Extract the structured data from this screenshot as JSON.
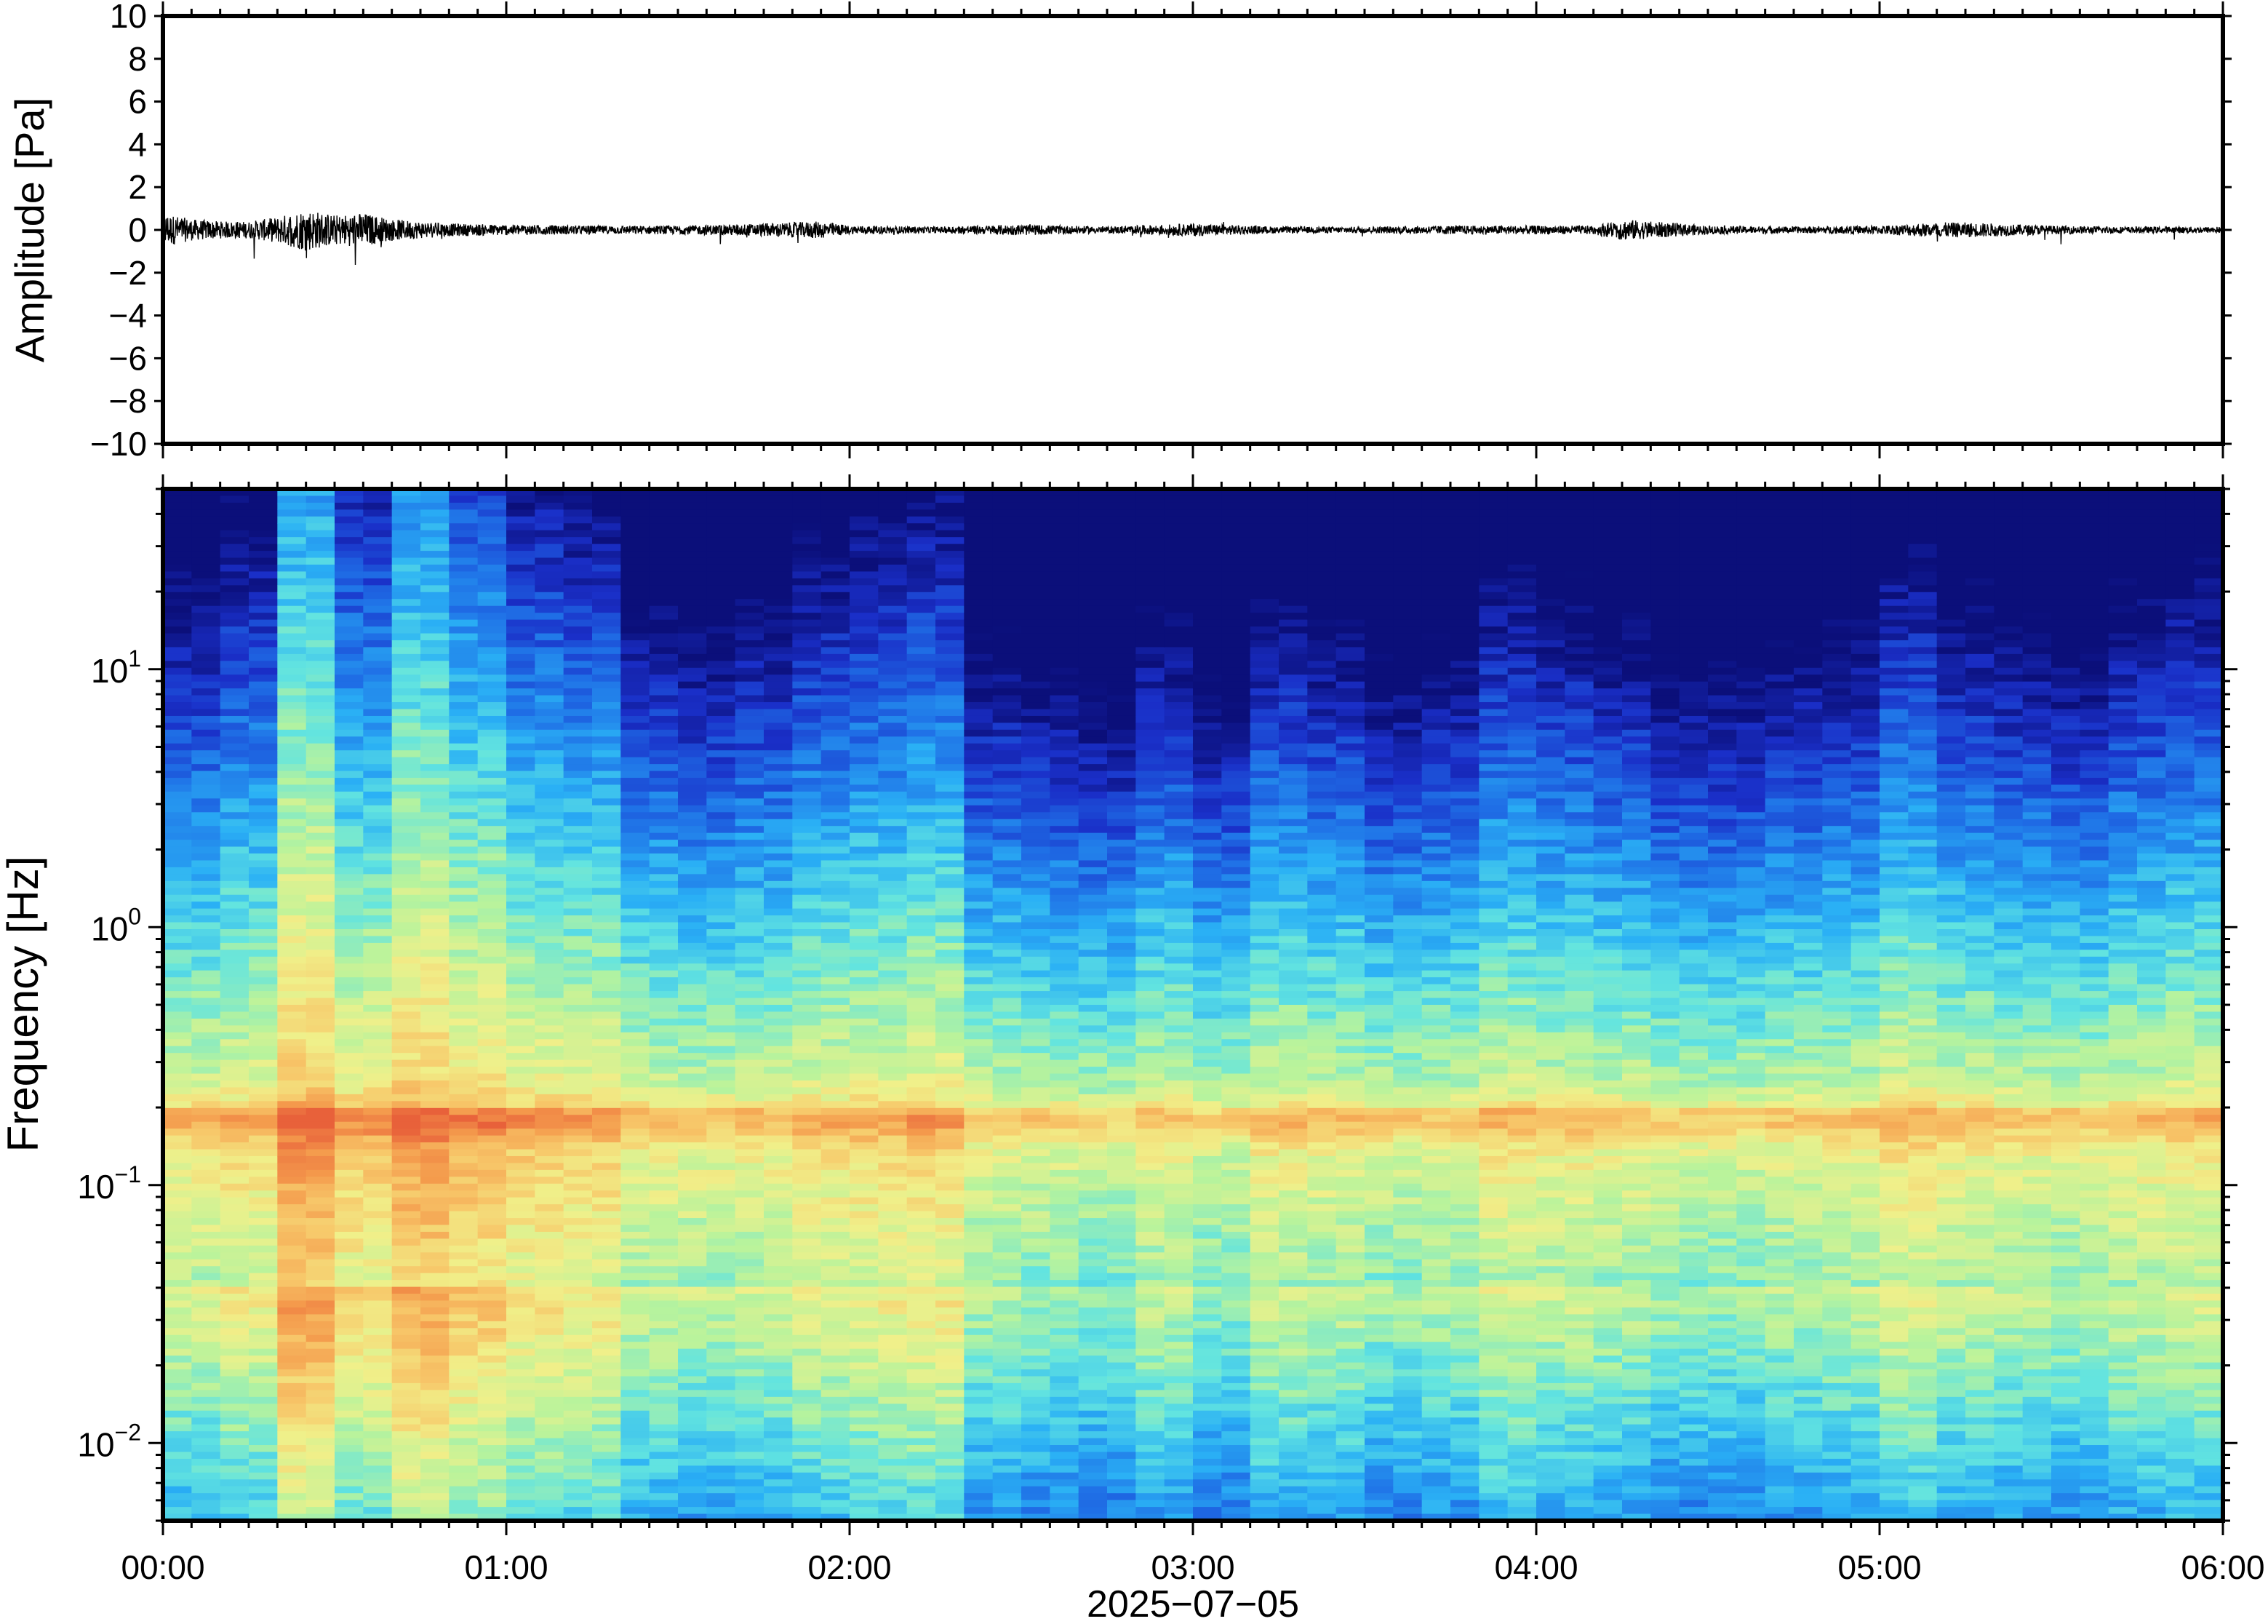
{
  "chart_data": [
    {
      "type": "line",
      "title": "",
      "ylabel": "Amplitude [Pa]",
      "ylim": [
        -10,
        10
      ],
      "yticks": [
        10,
        8,
        6,
        4,
        2,
        0,
        -2,
        -4,
        -6,
        -8,
        -10
      ],
      "ytick_labels": [
        "10",
        "8",
        "6",
        "4",
        "2",
        "0",
        "−2",
        "−4",
        "−6",
        "−8",
        "−10"
      ],
      "xlim": [
        "00:00",
        "06:00"
      ],
      "grid": false,
      "series": [
        {
          "x_minutes": [
            0,
            5,
            10,
            15,
            20,
            25,
            30,
            35,
            40,
            45,
            50,
            60,
            75,
            90,
            105,
            115,
            120,
            135,
            150,
            165,
            180,
            195,
            210,
            225,
            240,
            250,
            255,
            270,
            285,
            300,
            310,
            315,
            330,
            345,
            360
          ],
          "envelope_pa": [
            0.8,
            0.5,
            0.4,
            0.4,
            0.6,
            1.0,
            0.7,
            0.8,
            0.5,
            0.4,
            0.3,
            0.25,
            0.2,
            0.2,
            0.3,
            0.4,
            0.2,
            0.15,
            0.25,
            0.15,
            0.3,
            0.15,
            0.15,
            0.2,
            0.2,
            0.2,
            0.5,
            0.2,
            0.15,
            0.2,
            0.35,
            0.35,
            0.2,
            0.15,
            0.15
          ]
        }
      ]
    },
    {
      "type": "heatmap",
      "title": "",
      "ylabel": "Frequency [Hz]",
      "xlabel": "2025−07−05",
      "yscale": "log",
      "ylim": [
        0.005,
        50
      ],
      "yticks": [
        0.01,
        0.1,
        1,
        10
      ],
      "ytick_labels": [
        {
          "base": "10",
          "exp": "−2"
        },
        {
          "base": "10",
          "exp": "−1"
        },
        {
          "base": "10",
          "exp": "0"
        },
        {
          "base": "10",
          "exp": "1"
        }
      ],
      "xticks": [
        "00:00",
        "01:00",
        "02:00",
        "03:00",
        "04:00",
        "05:00",
        "06:00"
      ],
      "colormap": [
        "#0b0f7a",
        "#1a2fc8",
        "#1f6fe6",
        "#2ab0f5",
        "#62e4e0",
        "#b8f39c",
        "#f0f08a",
        "#f7c86a",
        "#f49a4c",
        "#e8603a"
      ],
      "noise_level_per_10min": [
        0.35,
        0.45,
        0.9,
        0.6,
        0.85,
        0.7,
        0.55,
        0.5,
        0.3,
        0.25,
        0.3,
        0.4,
        0.45,
        0.5,
        0.2,
        0.15,
        0.1,
        0.25,
        0.1,
        0.3,
        0.25,
        0.15,
        0.2,
        0.35,
        0.3,
        0.25,
        0.15,
        0.15,
        0.2,
        0.25,
        0.4,
        0.3,
        0.25,
        0.2,
        0.3,
        0.35
      ],
      "band_peak_hz": 0.18
    }
  ]
}
